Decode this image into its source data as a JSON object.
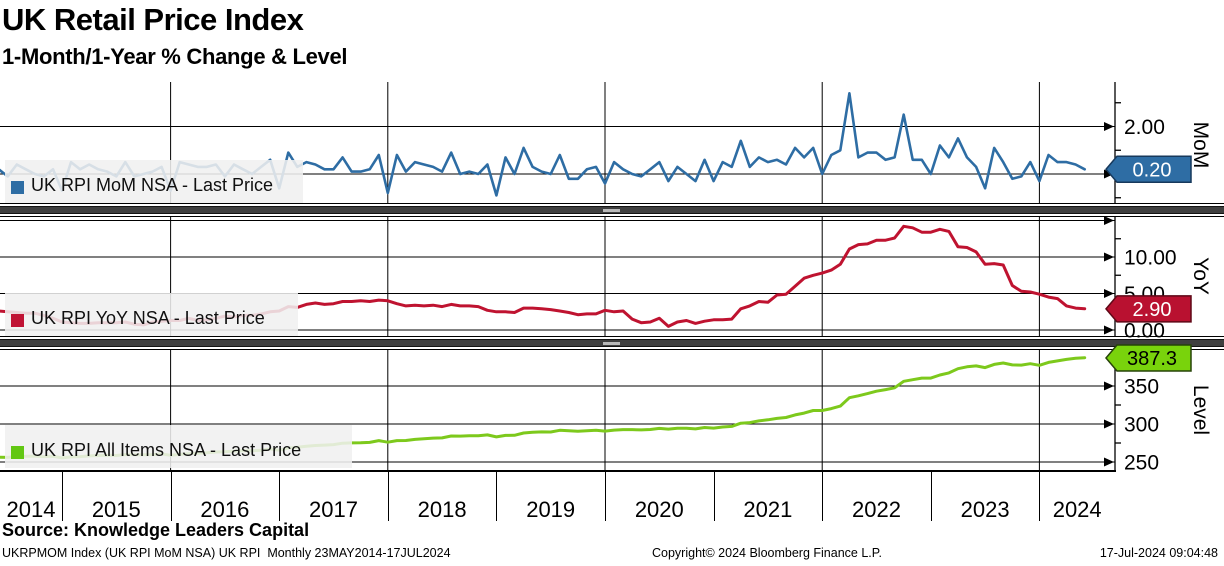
{
  "header": {
    "title": "UK Retail Price Index",
    "subtitle": "1-Month/1-Year % Change & Level"
  },
  "source_line": "Source: Knowledge Leaders Capital",
  "footer": {
    "left": "UKRPMOM Index (UK RPI MoM NSA) UK RPI  Monthly 23MAY2014-17JUL2024",
    "center": "Copyright© 2024 Bloomberg Finance L.P.",
    "right": "17-Jul-2024 09:04:48"
  },
  "x_axis": {
    "years": [
      "2014",
      "2015",
      "2016",
      "2017",
      "2018",
      "2019",
      "2020",
      "2021",
      "2022",
      "2023",
      "2024"
    ],
    "range": "23MAY2014-17JUL2024",
    "frequency": "Monthly"
  },
  "chart_data": [
    {
      "type": "line",
      "panel_id": "mom",
      "legend": "UK RPI MoM NSA - Last Price",
      "axis_title": "MoM",
      "color": "#2e6da4",
      "tag": {
        "label": "0.20",
        "value": 0.2,
        "fill": "#2e6da4",
        "stroke": "#17395c",
        "text_color": "#ffffff"
      },
      "ylim": [
        -1.26,
        3.87
      ],
      "yticks": [
        {
          "v": 2.0,
          "label": "2.00"
        },
        {
          "v": 0.0,
          "label": ""
        }
      ],
      "minor_ticks": [
        3.0,
        1.0,
        -1.0
      ],
      "x_start": "2014-05",
      "values": [
        0.1,
        0.2,
        -0.1,
        0.4,
        0.2,
        0.0,
        -0.1,
        0.2,
        -0.7,
        0.5,
        0.2,
        0.4,
        0.2,
        0.1,
        -0.1,
        0.5,
        -0.1,
        0.0,
        0.1,
        0.3,
        -0.7,
        0.5,
        0.4,
        0.3,
        0.3,
        0.4,
        -0.1,
        0.4,
        0.2,
        0.0,
        0.3,
        0.6,
        -0.6,
        0.9,
        0.3,
        0.5,
        0.4,
        0.2,
        0.2,
        0.7,
        0.1,
        0.1,
        0.2,
        0.8,
        -0.8,
        0.8,
        0.1,
        0.5,
        0.4,
        0.3,
        0.1,
        0.9,
        0.0,
        0.1,
        0.0,
        0.4,
        -0.9,
        0.7,
        0.0,
        1.1,
        0.3,
        0.1,
        0.0,
        0.8,
        -0.2,
        -0.2,
        0.2,
        0.3,
        -0.4,
        0.5,
        0.2,
        0.0,
        -0.1,
        0.2,
        0.5,
        -0.3,
        0.3,
        0.0,
        -0.3,
        0.6,
        -0.3,
        0.5,
        0.3,
        1.4,
        0.3,
        0.7,
        0.5,
        0.6,
        0.4,
        1.1,
        0.7,
        1.1,
        0.0,
        0.8,
        1.0,
        3.4,
        0.7,
        0.9,
        0.9,
        0.6,
        0.7,
        2.5,
        0.6,
        0.6,
        0.0,
        1.2,
        0.7,
        1.5,
        0.7,
        0.3,
        -0.6,
        1.1,
        0.5,
        -0.2,
        -0.1,
        0.5,
        -0.3,
        0.8,
        0.5,
        0.5,
        0.4,
        0.2
      ]
    },
    {
      "type": "line",
      "panel_id": "yoy",
      "legend": "UK RPI YoY NSA - Last Price",
      "axis_title": "YoY",
      "color": "#bf1330",
      "tag": {
        "label": "2.90",
        "value": 2.9,
        "fill": "#b91130",
        "stroke": "#5f0817",
        "text_color": "#ffffff"
      },
      "ylim": [
        -0.96,
        15.62
      ],
      "yticks": [
        {
          "v": 15.0,
          "label": ""
        },
        {
          "v": 10.0,
          "label": "10.00"
        },
        {
          "v": 5.0,
          "label": "5.00"
        },
        {
          "v": 0.0,
          "label": "0.00"
        }
      ],
      "minor_ticks": [
        12.5,
        7.5,
        2.5
      ],
      "x_start": "2014-05",
      "values": [
        2.5,
        2.6,
        2.5,
        2.4,
        2.3,
        2.3,
        2.0,
        1.6,
        1.1,
        1.0,
        0.9,
        0.9,
        1.0,
        1.0,
        1.0,
        1.1,
        0.8,
        0.7,
        1.1,
        1.2,
        1.3,
        1.3,
        1.6,
        1.3,
        1.4,
        1.6,
        1.9,
        1.8,
        2.0,
        2.0,
        2.2,
        2.5,
        2.6,
        3.2,
        3.1,
        3.5,
        3.7,
        3.5,
        3.6,
        3.9,
        3.9,
        4.0,
        3.9,
        4.1,
        4.0,
        3.6,
        3.3,
        3.4,
        3.3,
        3.4,
        3.2,
        3.5,
        3.3,
        3.3,
        3.2,
        2.7,
        2.5,
        2.5,
        2.4,
        3.0,
        3.0,
        2.9,
        2.8,
        2.6,
        2.4,
        2.1,
        2.2,
        2.2,
        2.7,
        2.5,
        2.6,
        1.5,
        1.0,
        1.1,
        1.6,
        0.5,
        1.1,
        1.3,
        0.9,
        1.2,
        1.4,
        1.4,
        1.5,
        2.9,
        3.3,
        3.9,
        3.8,
        4.8,
        4.9,
        6.0,
        7.1,
        7.5,
        7.8,
        8.2,
        9.0,
        11.1,
        11.7,
        11.8,
        12.3,
        12.3,
        12.6,
        14.2,
        14.0,
        13.4,
        13.4,
        13.8,
        13.5,
        11.4,
        11.3,
        10.7,
        9.0,
        9.1,
        8.9,
        6.1,
        5.3,
        5.2,
        4.9,
        4.5,
        4.3,
        3.3,
        3.0,
        2.9
      ]
    },
    {
      "type": "line",
      "panel_id": "level",
      "legend": "UK RPI All Items NSA - Last Price",
      "axis_title": "Level",
      "color": "#7dc91c",
      "tag": {
        "label": "387.3",
        "value": 387.3,
        "fill": "#79d30c",
        "stroke": "#27430a",
        "text_color": "#000000"
      },
      "ylim": [
        238.5,
        398.7
      ],
      "yticks": [
        {
          "v": 350,
          "label": "350"
        },
        {
          "v": 300,
          "label": "300"
        },
        {
          "v": 250,
          "label": "250"
        }
      ],
      "minor_ticks": [
        325,
        275
      ],
      "x_start": "2014-05",
      "values": [
        255.9,
        256.3,
        256.0,
        257.0,
        257.6,
        257.7,
        257.1,
        257.5,
        255.4,
        256.7,
        257.1,
        258.0,
        258.5,
        258.9,
        258.6,
        259.8,
        259.6,
        259.5,
        259.8,
        260.6,
        258.8,
        260.0,
        261.1,
        261.4,
        262.1,
        263.1,
        263.4,
        264.4,
        264.9,
        264.8,
        265.5,
        267.1,
        265.5,
        268.4,
        269.3,
        270.6,
        271.7,
        272.3,
        272.9,
        274.7,
        275.1,
        275.3,
        275.8,
        278.1,
        276.0,
        278.1,
        278.3,
        279.7,
        280.7,
        281.5,
        281.7,
        284.2,
        284.1,
        284.5,
        284.6,
        285.6,
        283.0,
        285.0,
        285.1,
        288.2,
        289.2,
        289.6,
        289.5,
        291.7,
        291.0,
        290.4,
        291.0,
        291.9,
        290.6,
        292.0,
        292.6,
        292.6,
        292.2,
        292.7,
        294.2,
        293.3,
        294.3,
        294.3,
        293.5,
        295.4,
        294.6,
        296.0,
        296.9,
        301.1,
        301.9,
        304.1,
        305.5,
        307.4,
        308.6,
        312.0,
        314.3,
        317.7,
        317.7,
        320.2,
        323.5,
        334.6,
        337.1,
        340.0,
        343.2,
        345.2,
        347.6,
        356.2,
        358.3,
        360.4,
        360.4,
        364.5,
        367.2,
        372.8,
        375.3,
        376.4,
        374.2,
        378.4,
        380.2,
        377.8,
        377.5,
        379.4,
        377.3,
        381.0,
        383.0,
        385.0,
        386.4,
        387.3
      ]
    }
  ]
}
